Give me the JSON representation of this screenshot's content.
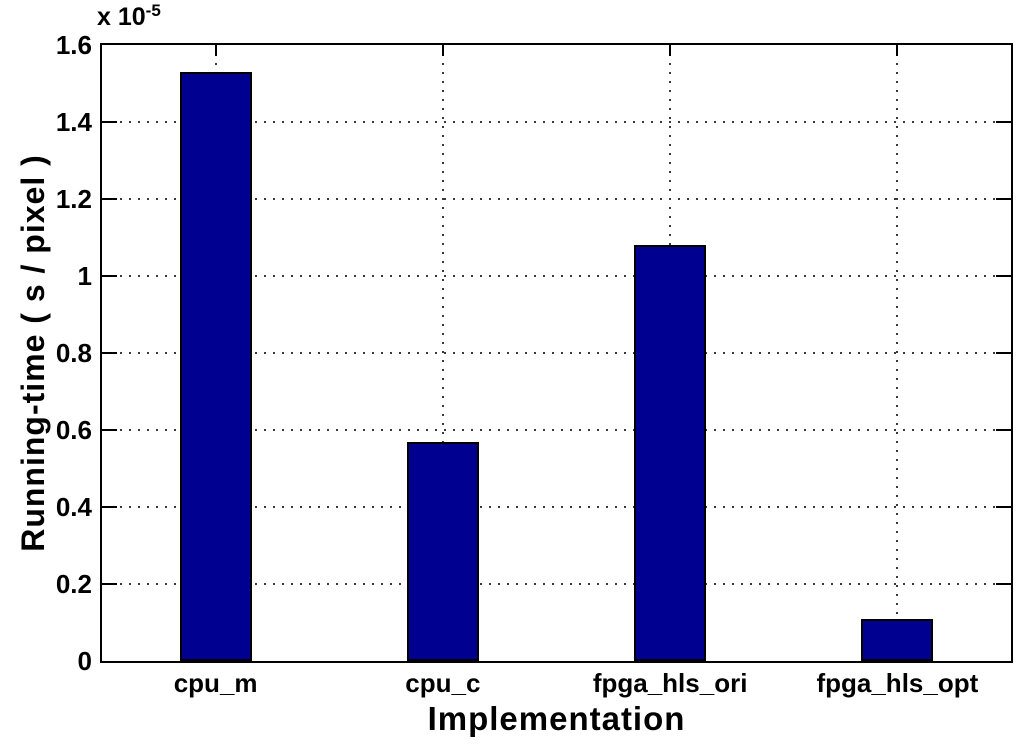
{
  "chart_data": {
    "type": "bar",
    "title": "",
    "xlabel": "Implementation",
    "ylabel": "Running-time ( s / pixel )",
    "y_exponent_base": "x 10",
    "y_exponent_power": "-5",
    "value_scale": "1e-5",
    "categories": [
      "cpu_m",
      "cpu_c",
      "fpga_hls_ori",
      "fpga_hls_opt"
    ],
    "values_scaled": [
      1.53,
      0.57,
      1.08,
      0.11
    ],
    "values": [
      1.53e-05,
      5.7e-06,
      1.08e-05,
      1.1e-06
    ],
    "ylim_scaled": [
      0,
      1.6
    ],
    "yticks_scaled": [
      0,
      0.2,
      0.4,
      0.6,
      0.8,
      1.0,
      1.2,
      1.4,
      1.6
    ],
    "ytick_labels": [
      "0",
      "0.2",
      "0.4",
      "0.6",
      "0.8",
      "1",
      "1.2",
      "1.4",
      "1.6"
    ],
    "grid": true,
    "legend_position": "none",
    "bar_color": "#000090",
    "bar_edge_color": "#000000",
    "axis_color": "#000000",
    "background_color": "#ffffff",
    "text_color": "#000000"
  }
}
